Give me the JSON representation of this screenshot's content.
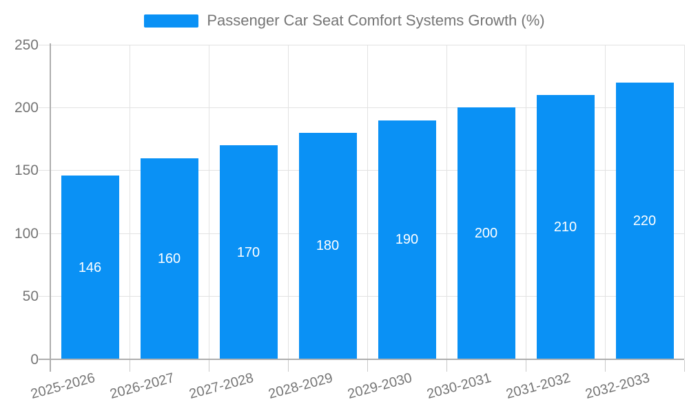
{
  "chart_data": {
    "type": "bar",
    "title": "Passenger Car Seat Comfort Systems Growth (%)",
    "categories": [
      "2025-2026",
      "2026-2027",
      "2027-2028",
      "2028-2029",
      "2029-2030",
      "2030-2031",
      "2031-2032",
      "2032-2033"
    ],
    "values": [
      146,
      160,
      170,
      180,
      190,
      200,
      210,
      220
    ],
    "yticks": [
      0,
      50,
      100,
      150,
      200,
      250
    ],
    "ylim": [
      0,
      250
    ],
    "xlabel": "",
    "ylabel": "",
    "grid": true,
    "legend_position": "top-center",
    "x_tick_rotation_deg": -15,
    "colors": {
      "bar": "#0a91f5",
      "value_label": "#ffffff",
      "axis_text": "#757575",
      "axis_line": "#adadad",
      "grid_line": "#e2e2e2",
      "tick_line": "#c9c9c9",
      "background": "#ffffff"
    }
  }
}
